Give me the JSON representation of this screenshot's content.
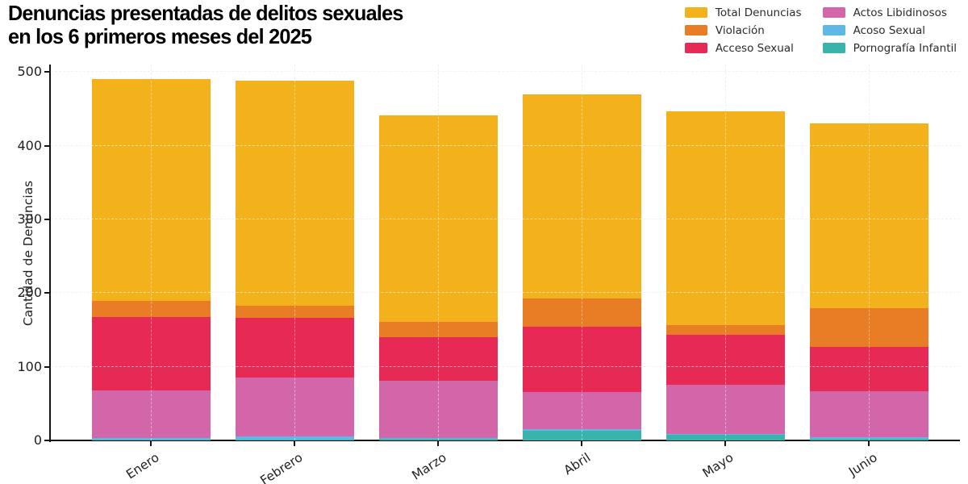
{
  "title": {
    "line1": "Denuncias presentadas de delitos sexuales",
    "line2": "en los 6 primeros meses del 2025"
  },
  "y_axis": {
    "label": "Cantidad de Denuncias",
    "ticks": [
      0,
      100,
      200,
      300,
      400,
      500
    ]
  },
  "x_axis": {
    "categories": [
      "Enero",
      "Febrero",
      "Marzo",
      "Abril",
      "Mayo",
      "Junio"
    ]
  },
  "legend": {
    "columns": [
      [
        {
          "label": "Total Denuncias",
          "color": "#f3b11b"
        },
        {
          "label": "Violación",
          "color": "#e87d26"
        },
        {
          "label": "Acceso Sexual",
          "color": "#e72a55"
        }
      ],
      [
        {
          "label": "Actos Libidinosos",
          "color": "#d366a9"
        },
        {
          "label": "Acoso Sexual",
          "color": "#5fb7e5"
        },
        {
          "label": "Pornografía Infantil",
          "color": "#3bb2ab"
        }
      ]
    ]
  },
  "colors": {
    "total": "#f3b11b",
    "violacion": "#e87d26",
    "acceso": "#e72a55",
    "actos": "#d366a9",
    "acoso": "#5fb7e5",
    "pornografia": "#3bb2ab",
    "grid": "#e4e4e4",
    "axis": "#141414"
  },
  "chart_data": {
    "type": "bar",
    "stacked": true,
    "title": "Denuncias presentadas de delitos sexuales en los 6 primeros meses del 2025",
    "xlabel": "",
    "ylabel": "Cantidad de Denuncias",
    "ylim": [
      0,
      510
    ],
    "grid": true,
    "legend_position": "top-right",
    "categories": [
      "Enero",
      "Febrero",
      "Marzo",
      "Abril",
      "Mayo",
      "Junio"
    ],
    "totals": [
      490,
      488,
      441,
      469,
      447,
      430
    ],
    "stack_order_note": "series listed bottom-to-top; 'Total Denuncias' yellow segment is the remainder up to the monthly total",
    "series": [
      {
        "name": "Pornografía Infantil",
        "color": "#3bb2ab",
        "values": [
          1,
          1,
          2,
          13,
          8,
          2
        ]
      },
      {
        "name": "Acoso Sexual",
        "color": "#5fb7e5",
        "values": [
          2,
          4,
          1,
          2,
          1,
          2
        ]
      },
      {
        "name": "Actos Libidinosos",
        "color": "#d366a9",
        "values": [
          65,
          80,
          78,
          51,
          67,
          63
        ]
      },
      {
        "name": "Acceso Sexual",
        "color": "#e72a55",
        "values": [
          100,
          81,
          59,
          88,
          67,
          60
        ]
      },
      {
        "name": "Violación",
        "color": "#e87d26",
        "values": [
          21,
          17,
          21,
          39,
          14,
          52
        ]
      },
      {
        "name": "Total Denuncias",
        "color": "#f3b11b",
        "values": [
          301,
          305,
          280,
          276,
          290,
          251
        ]
      }
    ]
  }
}
